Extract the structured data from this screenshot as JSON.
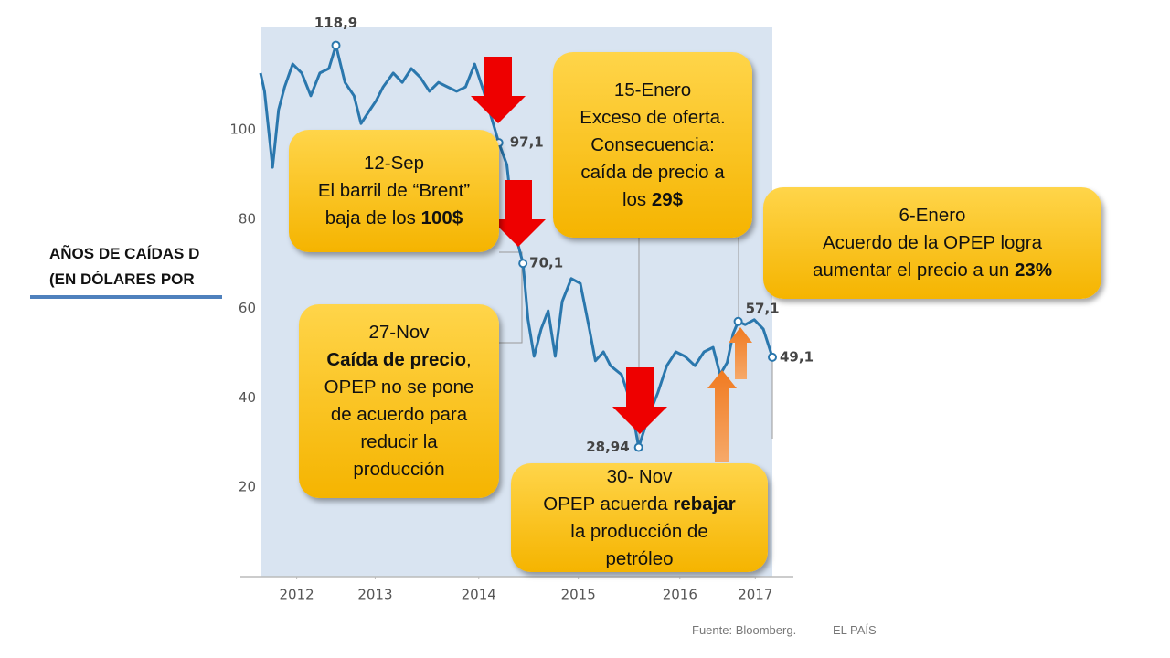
{
  "header": {
    "lines": [
      "AÑOS DE CAÍDAS D",
      "(EN DÓLARES POR "
    ]
  },
  "chart_data": {
    "type": "line",
    "color": "#2a77ad",
    "x": [
      2011.83,
      2011.87,
      2011.95,
      2012.01,
      2012.07,
      2012.15,
      2012.24,
      2012.33,
      2012.42,
      2012.51,
      2012.58,
      2012.67,
      2012.76,
      2012.83,
      2012.92,
      2012.98,
      2013.05,
      2013.15,
      2013.24,
      2013.33,
      2013.42,
      2013.51,
      2013.6,
      2013.69,
      2013.78,
      2013.87,
      2013.96,
      2014.05,
      2014.2,
      2014.28,
      2014.35,
      2014.44,
      2014.49,
      2014.55,
      2014.62,
      2014.69,
      2014.76,
      2014.83,
      2014.92,
      2015.01,
      2015.1,
      2015.16,
      2015.24,
      2015.31,
      2015.42,
      2015.51,
      2015.59,
      2015.69,
      2015.78,
      2015.87,
      2015.96,
      2016.05,
      2016.15,
      2016.24,
      2016.33,
      2016.4,
      2016.47,
      2016.53,
      2016.58,
      2016.65,
      2016.74,
      2016.83,
      2016.92
    ],
    "values": [
      112.7,
      108.6,
      91.6,
      104.5,
      109.6,
      114.7,
      112.7,
      107.6,
      112.7,
      113.7,
      118.9,
      110.6,
      107.6,
      101.4,
      104.5,
      106.5,
      109.6,
      112.7,
      110.6,
      113.7,
      111.7,
      108.6,
      110.6,
      109.6,
      108.6,
      109.6,
      114.7,
      108.6,
      97.1,
      92.2,
      77.9,
      70.1,
      57.5,
      49.3,
      55.4,
      59.5,
      49.3,
      61.6,
      66.7,
      65.6,
      55.4,
      48.3,
      50.3,
      47.2,
      45.2,
      39.1,
      28.94,
      36.0,
      41.1,
      47.2,
      50.3,
      49.3,
      47.2,
      50.3,
      51.3,
      45.2,
      47.9,
      54.4,
      57.1,
      56.4,
      57.5,
      55.4,
      49.1
    ],
    "markers": {
      "x": [
        2012.58,
        2014.2,
        2014.44,
        2015.59,
        2016.58,
        2016.92
      ],
      "values": [
        118.9,
        97.1,
        70.1,
        28.94,
        57.1,
        49.1
      ],
      "value_labels": [
        "118,9",
        "97,1",
        "70,1",
        "28,94",
        "57,1",
        "49,1"
      ]
    },
    "xlim": [
      2011.83,
      2016.92
    ],
    "ylim": [
      0,
      120
    ],
    "yticks": [
      20,
      40,
      60,
      80,
      100
    ],
    "xticks": [
      {
        "value": 2012.19,
        "label": "2012"
      },
      {
        "value": 2012.97,
        "label": "2013"
      },
      {
        "value": 2014.0,
        "label": "2014"
      },
      {
        "value": 2014.99,
        "label": "2015"
      },
      {
        "value": 2016.0,
        "label": "2016"
      },
      {
        "value": 2016.75,
        "label": "2017"
      }
    ]
  },
  "callouts": [
    {
      "lines": [
        [
          {
            "t": "12-Sep"
          }
        ],
        [
          {
            "t": "El barril de “Brent”"
          }
        ],
        [
          {
            "t": "baja de los "
          },
          {
            "t": "100$",
            "bold": true
          }
        ]
      ]
    },
    {
      "lines": [
        [
          {
            "t": "15-Enero"
          }
        ],
        [
          {
            "t": "Exceso de oferta."
          }
        ],
        [
          {
            "t": "Consecuencia:"
          }
        ],
        [
          {
            "t": "caída de precio a"
          }
        ],
        [
          {
            "t": "los "
          },
          {
            "t": "29$",
            "bold": true
          }
        ]
      ]
    },
    {
      "lines": [
        [
          {
            "t": "6-Enero"
          }
        ],
        [
          {
            "t": "Acuerdo de la OPEP logra"
          }
        ],
        [
          {
            "t": "aumentar el precio a un "
          },
          {
            "t": "23%",
            "bold": true
          }
        ]
      ]
    },
    {
      "lines": [
        [
          {
            "t": "27-Nov"
          }
        ],
        [
          {
            "t": "Caída de precio",
            "bold": true
          },
          {
            "t": ","
          }
        ],
        [
          {
            "t": "OPEP no se pone"
          }
        ],
        [
          {
            "t": "de acuerdo para"
          }
        ],
        [
          {
            "t": "reducir la"
          }
        ],
        [
          {
            "t": "producción"
          }
        ]
      ]
    },
    {
      "lines": [
        [
          {
            "t": "30- Nov"
          }
        ],
        [
          {
            "t": "OPEP acuerda "
          },
          {
            "t": "rebajar",
            "bold": true
          }
        ],
        [
          {
            "t": "la producción de"
          }
        ],
        [
          {
            "t": "petróleo"
          }
        ]
      ]
    }
  ],
  "footer": {
    "source": "Fuente: Bloomberg.",
    "brand": "EL PAÍS"
  }
}
